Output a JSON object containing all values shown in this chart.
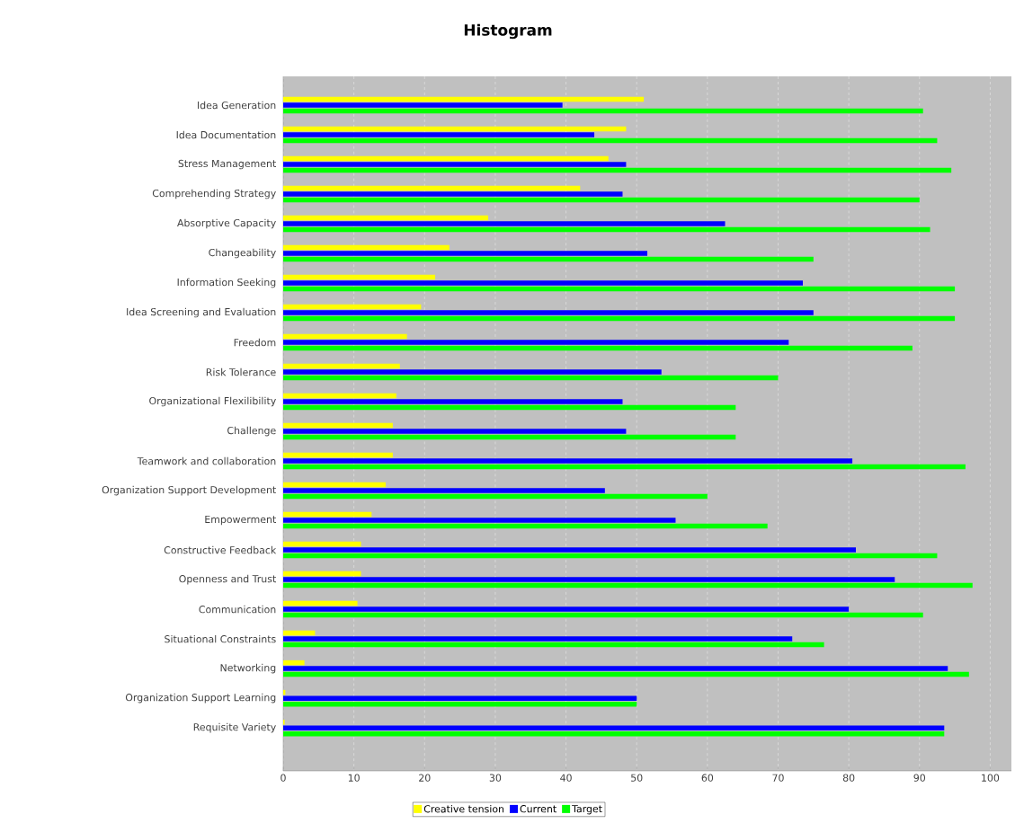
{
  "chart_data": {
    "type": "bar",
    "orientation": "horizontal",
    "title": "Histogram",
    "categories": [
      "Idea Generation",
      "Idea Documentation",
      "Stress Management",
      "Comprehending Strategy",
      "Absorptive Capacity",
      "Changeability",
      "Information Seeking",
      "Idea Screening and Evaluation",
      "Freedom",
      "Risk Tolerance",
      "Organizational Flexilibility",
      "Challenge",
      "Teamwork and collaboration",
      "Organization Support Development",
      "Empowerment",
      "Constructive Feedback",
      "Openness and Trust",
      "Communication",
      "Situational Constraints",
      "Networking",
      "Organization Support Learning",
      "Requisite Variety"
    ],
    "series": [
      {
        "name": "Creative tension",
        "color": "#ffff00",
        "values": [
          51,
          48.5,
          46,
          42,
          29,
          23.5,
          21.5,
          19.5,
          17.5,
          16.5,
          16,
          15.5,
          15.5,
          14.5,
          12.5,
          11,
          11,
          10.5,
          4.5,
          3,
          0.3,
          0.2
        ]
      },
      {
        "name": "Current",
        "color": "#0000ff",
        "values": [
          39.5,
          44,
          48.5,
          48,
          62.5,
          51.5,
          73.5,
          75,
          71.5,
          53.5,
          48,
          48.5,
          80.5,
          45.5,
          55.5,
          81,
          86.5,
          80,
          72,
          94,
          50,
          93.5
        ]
      },
      {
        "name": "Target",
        "color": "#00ff00",
        "values": [
          90.5,
          92.5,
          94.5,
          90,
          91.5,
          75,
          95,
          95,
          89,
          70,
          64,
          64,
          96.5,
          60,
          68.5,
          92.5,
          97.5,
          90.5,
          76.5,
          97,
          50,
          93.5
        ]
      }
    ],
    "xlim": [
      0,
      103
    ],
    "xticks": [
      0,
      10,
      20,
      30,
      40,
      50,
      60,
      70,
      80,
      90,
      100
    ],
    "grid": "x",
    "legend": "bottom"
  }
}
